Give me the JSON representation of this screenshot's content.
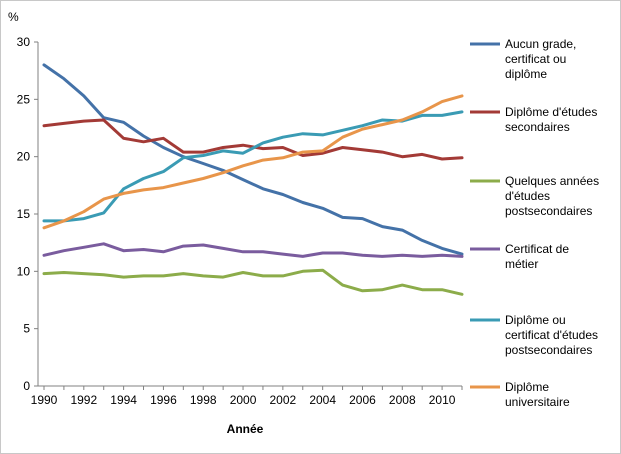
{
  "chart_data": {
    "type": "line",
    "ylabel": "%",
    "xlabel": "Année",
    "ylim": [
      0,
      30
    ],
    "yticks": [
      0,
      5,
      10,
      15,
      20,
      25,
      30
    ],
    "xlim": [
      1990,
      2011
    ],
    "xticks": [
      1990,
      1992,
      1994,
      1996,
      1998,
      2000,
      2002,
      2004,
      2006,
      2008,
      2010
    ],
    "grid": false,
    "legend_position": "right",
    "x": [
      1990,
      1991,
      1992,
      1993,
      1994,
      1995,
      1996,
      1997,
      1998,
      1999,
      2000,
      2001,
      2002,
      2003,
      2004,
      2005,
      2006,
      2007,
      2008,
      2009,
      2010,
      2011
    ],
    "series": [
      {
        "name": "Aucun grade, certificat ou diplôme",
        "legend_lines": [
          "Aucun grade,",
          "certificat ou",
          "diplôme"
        ],
        "color": "#4472a8",
        "values": [
          28.0,
          26.8,
          25.3,
          23.4,
          23.0,
          21.8,
          20.8,
          20.0,
          19.4,
          18.8,
          18.0,
          17.2,
          16.7,
          16.0,
          15.5,
          14.7,
          14.6,
          13.9,
          13.6,
          12.7,
          12.0,
          11.5
        ]
      },
      {
        "name": "Diplôme d'études secondaires",
        "legend_lines": [
          "Diplôme d'études",
          "secondaires"
        ],
        "color": "#a33a36",
        "values": [
          22.7,
          22.9,
          23.1,
          23.2,
          21.6,
          21.3,
          21.6,
          20.4,
          20.4,
          20.8,
          21.0,
          20.7,
          20.8,
          20.1,
          20.3,
          20.8,
          20.6,
          20.4,
          20.0,
          20.2,
          19.8,
          19.9
        ]
      },
      {
        "name": "Quelques années d'études postsecondaires",
        "legend_lines": [
          "Quelques années",
          "d'études",
          "postsecondaires"
        ],
        "color": "#8cac4a",
        "values": [
          9.8,
          9.9,
          9.8,
          9.7,
          9.5,
          9.6,
          9.6,
          9.8,
          9.6,
          9.5,
          9.9,
          9.6,
          9.6,
          10.0,
          10.1,
          8.8,
          8.3,
          8.4,
          8.8,
          8.4,
          8.4,
          8.0
        ]
      },
      {
        "name": "Certificat de métier",
        "legend_lines": [
          "Certificat de",
          "métier"
        ],
        "color": "#7a5c9e",
        "values": [
          11.4,
          11.8,
          12.1,
          12.4,
          11.8,
          11.9,
          11.7,
          12.2,
          12.3,
          12.0,
          11.7,
          11.7,
          11.5,
          11.3,
          11.6,
          11.6,
          11.4,
          11.3,
          11.4,
          11.3,
          11.4,
          11.3
        ]
      },
      {
        "name": "Diplôme ou certificat d'études postsecondaires",
        "legend_lines": [
          "Diplôme ou",
          "certificat d'études",
          "postsecondaires"
        ],
        "color": "#3a9bb4",
        "values": [
          14.4,
          14.4,
          14.6,
          15.1,
          17.2,
          18.1,
          18.7,
          19.9,
          20.1,
          20.5,
          20.3,
          21.2,
          21.7,
          22.0,
          21.9,
          22.3,
          22.7,
          23.2,
          23.1,
          23.6,
          23.6,
          23.9
        ]
      },
      {
        "name": "Diplôme universitaire",
        "legend_lines": [
          "Diplôme",
          "universitaire"
        ],
        "color": "#e8954a",
        "values": [
          13.8,
          14.4,
          15.2,
          16.3,
          16.8,
          17.1,
          17.3,
          17.7,
          18.1,
          18.6,
          19.2,
          19.7,
          19.9,
          20.4,
          20.5,
          21.7,
          22.4,
          22.8,
          23.2,
          23.9,
          24.8,
          25.3
        ]
      }
    ]
  }
}
